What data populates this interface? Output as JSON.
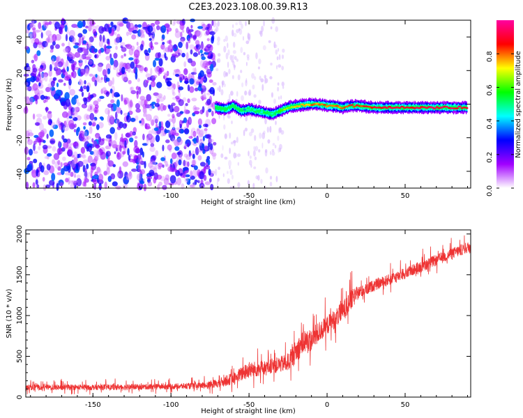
{
  "title": "C2E3.2023.108.00.39.R13",
  "chart_data": [
    {
      "type": "heatmap",
      "xlabel": "Height of straight line (km)",
      "ylabel": "Frequency (Hz)",
      "xlim": [
        -193,
        92
      ],
      "ylim": [
        -50,
        50
      ],
      "x_ticks": [
        -150,
        -100,
        -50,
        0,
        50
      ],
      "y_ticks": [
        -40,
        -20,
        0,
        20,
        40
      ],
      "colorbar": {
        "label": "Normalized spectral amplitude",
        "range": [
          0,
          1
        ],
        "ticks": [
          0.0,
          0.2,
          0.4,
          0.6,
          0.8
        ],
        "colors": [
          "#ffffff",
          "#a100ff",
          "#0000ff",
          "#00ffff",
          "#00ff00",
          "#ffff00",
          "#ff0000",
          "#ff00a0"
        ]
      },
      "noise_region": {
        "x_from": -193,
        "x_to": -72,
        "amplitude": [
          0.05,
          0.35
        ]
      },
      "sparse_noise_region": {
        "x_from": -72,
        "x_to": -28,
        "amplitude": [
          0.0,
          0.1
        ]
      },
      "ridge": {
        "x": [
          -72,
          -65,
          -60,
          -55,
          -50,
          -45,
          -40,
          -35,
          -30,
          -25,
          -20,
          -15,
          -10,
          -5,
          0,
          5,
          10,
          15,
          20,
          30,
          40,
          50,
          60,
          70,
          80,
          90
        ],
        "frequency": [
          -2,
          -3,
          -1,
          -4,
          -3,
          -4,
          -5,
          -6,
          -4,
          -2,
          -1,
          -0.5,
          0,
          0,
          -1,
          -1,
          -2,
          -1,
          -1,
          -2,
          -2,
          -2,
          -2,
          -2,
          -2,
          -2
        ],
        "amplitude": [
          0.3,
          0.35,
          0.4,
          0.35,
          0.45,
          0.45,
          0.5,
          0.5,
          0.6,
          0.65,
          0.7,
          0.75,
          0.78,
          0.8,
          0.8,
          0.8,
          0.82,
          0.85,
          0.85,
          0.87,
          0.88,
          0.9,
          0.9,
          0.92,
          0.92,
          0.92
        ]
      }
    },
    {
      "type": "line",
      "xlabel": "Height of straight line (km)",
      "ylabel": "SNR (10 * v/v)",
      "xlim": [
        -193,
        92
      ],
      "ylim": [
        0,
        2050
      ],
      "x_ticks": [
        -150,
        -100,
        -50,
        0,
        50
      ],
      "y_ticks": [
        0,
        500,
        1000,
        1500,
        2000
      ],
      "color": "#ee3333",
      "series": [
        {
          "x": [
            -193,
            -150,
            -100,
            -80,
            -70,
            -60,
            -50,
            -40,
            -30,
            -25,
            -20,
            -15,
            -10,
            -5,
            0,
            5,
            10,
            15,
            20,
            30,
            40,
            50,
            60,
            70,
            80,
            92
          ],
          "y": [
            120,
            120,
            130,
            140,
            170,
            230,
            330,
            360,
            400,
            430,
            560,
            680,
            700,
            800,
            880,
            960,
            1050,
            1180,
            1280,
            1370,
            1440,
            1520,
            1600,
            1680,
            1760,
            1850
          ],
          "noise": [
            70,
            70,
            70,
            80,
            110,
            150,
            210,
            180,
            200,
            220,
            280,
            300,
            280,
            260,
            240,
            240,
            250,
            260,
            160,
            140,
            140,
            140,
            140,
            140,
            140,
            140
          ]
        }
      ]
    }
  ]
}
